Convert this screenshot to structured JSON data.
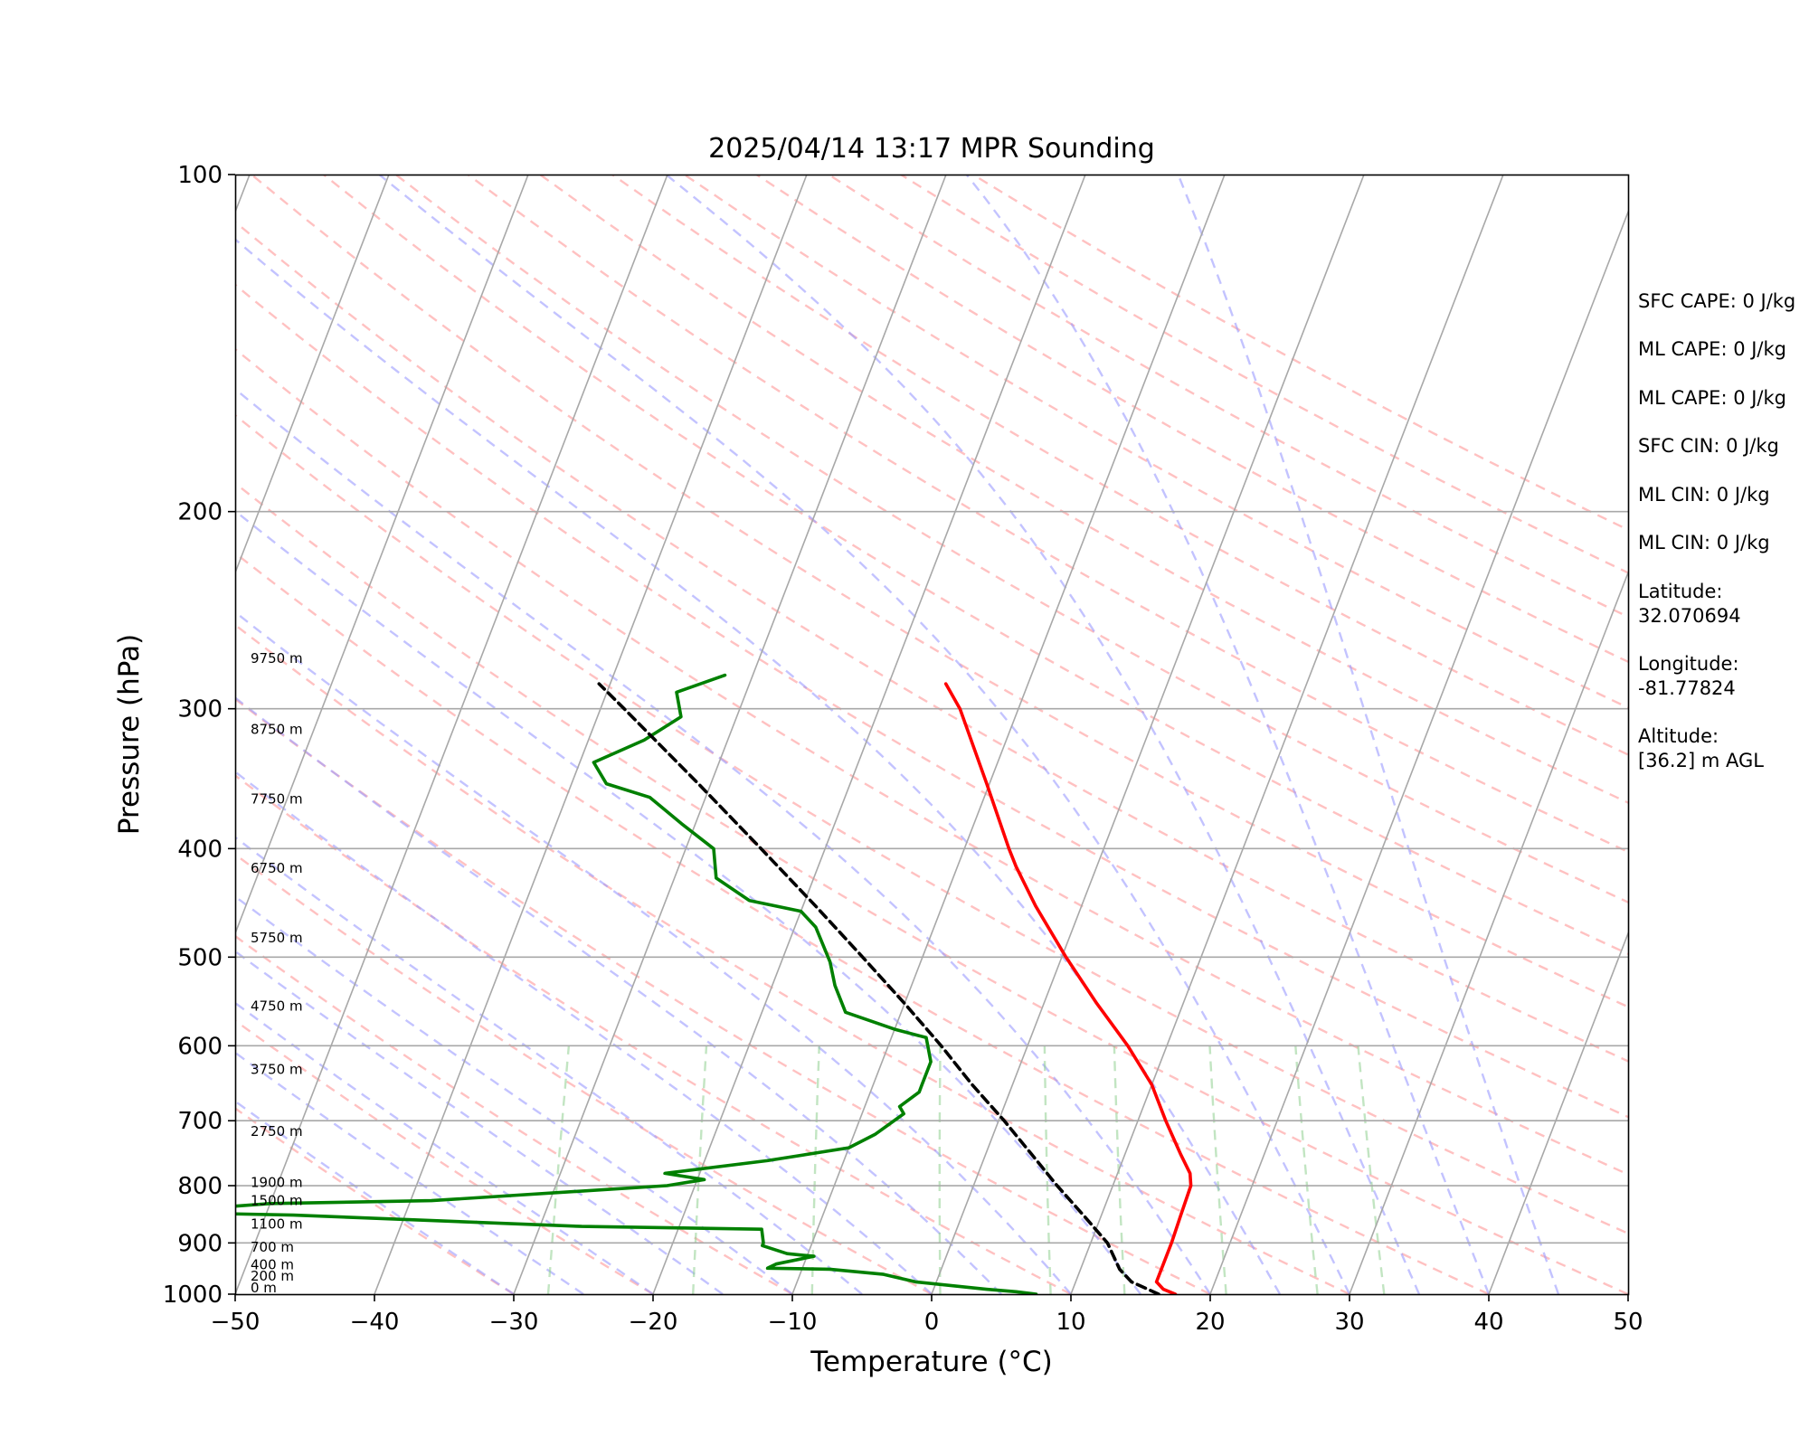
{
  "chart_data": {
    "type": "line",
    "subtype": "skew-t log-p",
    "title": "2025/04/14 13:17 MPR Sounding",
    "xlabel": "Temperature (°C)",
    "ylabel": "Pressure (hPa)",
    "xlim": [
      -50,
      50
    ],
    "ylim": [
      1000,
      100
    ],
    "y_scale": "log",
    "x_ticks": [
      "−50",
      "−40",
      "−30",
      "−20",
      "−10",
      "0",
      "10",
      "20",
      "30",
      "40",
      "50"
    ],
    "y_ticks": [
      100,
      200,
      300,
      400,
      500,
      600,
      700,
      800,
      900,
      1000
    ],
    "grid": true,
    "legend": "none",
    "series": [
      {
        "color": "#ff0000",
        "pressure": [
          1000,
          990,
          975,
          950,
          925,
          900,
          850,
          800,
          780,
          750,
          700,
          650,
          600,
          550,
          500,
          450,
          415,
          400,
          350,
          300,
          285
        ],
        "temperature": [
          17.5,
          16.5,
          15.8,
          15.8,
          15.8,
          15.8,
          15.7,
          15.6,
          15.2,
          14.0,
          12.0,
          10.0,
          7.2,
          3.8,
          0.3,
          -3.3,
          -5.8,
          -6.8,
          -10.2,
          -14.2,
          -15.9
        ]
      },
      {
        "color": "#008000",
        "pressure": [
          1000,
          995,
          990,
          975,
          960,
          950,
          948,
          940,
          925,
          920,
          905,
          900,
          875,
          870,
          850,
          845,
          830,
          825,
          800,
          790,
          780,
          760,
          740,
          720,
          690,
          680,
          660,
          650,
          620,
          590,
          580,
          560,
          530,
          505,
          470,
          455,
          445,
          425,
          400,
          380,
          360,
          350,
          335,
          320,
          305,
          290,
          280
        ],
        "temperature": [
          7.5,
          6.0,
          3.8,
          -1.5,
          -4.0,
          -8.0,
          -12.5,
          -12.0,
          -9.5,
          -11.5,
          -13.5,
          -13.5,
          -14.0,
          -27.0,
          -48.0,
          -58.0,
          -50.0,
          -38.5,
          -22.0,
          -19.5,
          -22.5,
          -15.5,
          -10.0,
          -8.5,
          -7.0,
          -7.5,
          -6.5,
          -6.5,
          -6.5,
          -7.5,
          -10.0,
          -14.0,
          -15.5,
          -16.5,
          -18.5,
          -20.0,
          -24.0,
          -27.0,
          -28.0,
          -31.0,
          -34.0,
          -37.5,
          -39.0,
          -36.0,
          -34.0,
          -35.0,
          -32.0
        ]
      },
      {
        "color": "#000000",
        "style": "dashed",
        "pressure": [
          1000,
          975,
          950,
          900,
          850,
          800,
          750,
          700,
          650,
          600,
          550,
          500,
          450,
          400,
          350,
          300,
          285
        ],
        "temperature": [
          16.3,
          14.0,
          12.8,
          11.2,
          8.7,
          6.0,
          3.3,
          0.4,
          -2.9,
          -6.2,
          -10.0,
          -14.3,
          -19.1,
          -24.6,
          -30.9,
          -38.3,
          -40.8
        ]
      }
    ],
    "height_labels": [
      {
        "p": 1000,
        "text": "0 m"
      },
      {
        "p": 976,
        "text": "200 m"
      },
      {
        "p": 954,
        "text": "400 m"
      },
      {
        "p": 920,
        "text": "700 m"
      },
      {
        "p": 877,
        "text": "1100 m"
      },
      {
        "p": 836,
        "text": "1500 m"
      },
      {
        "p": 805,
        "text": "1900 m"
      },
      {
        "p": 725,
        "text": "2750 m"
      },
      {
        "p": 638,
        "text": "3750 m"
      },
      {
        "p": 560,
        "text": "4750 m"
      },
      {
        "p": 487,
        "text": "5750 m"
      },
      {
        "p": 422,
        "text": "6750 m"
      },
      {
        "p": 366,
        "text": "7750 m"
      },
      {
        "p": 317,
        "text": "8750 m"
      },
      {
        "p": 274,
        "text": "9750 m"
      }
    ]
  },
  "stats": [
    "SFC CAPE: 0 J/kg",
    "ML CAPE: 0 J/kg",
    "ML CAPE: 0 J/kg",
    "SFC CIN: 0 J/kg",
    "ML CIN: 0 J/kg",
    "ML CIN: 0 J/kg"
  ],
  "location": {
    "lat_label": "Latitude:",
    "lat_value": "32.070694",
    "lon_label": "Longitude:",
    "lon_value": "-81.77824",
    "alt_label": "Altitude:",
    "alt_value": "[36.2] m AGL"
  }
}
